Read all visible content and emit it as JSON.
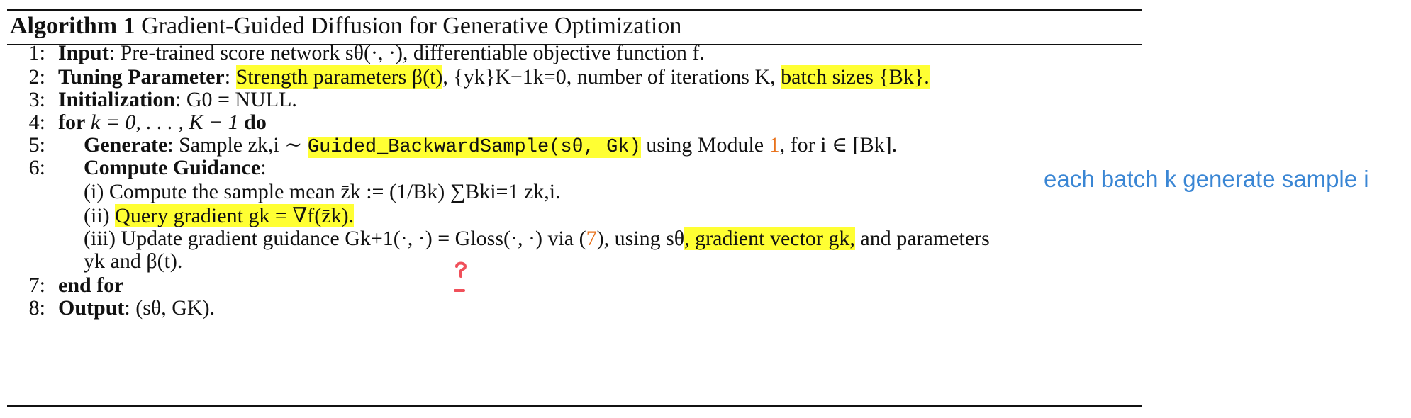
{
  "title": {
    "label": "Algorithm 1",
    "text": "Gradient-Guided Diffusion for Generative Optimization"
  },
  "lines": [
    {
      "num": "1:",
      "kw": "Input",
      "rest": ": Pre-trained score network sθ(·, ·), differentiable objective function f."
    },
    {
      "num": "2:",
      "kw": "Tuning Parameter",
      "hl1": "Strength parameters β(t)",
      "mid": ", {yk}K−1k=0, number of iterations K, ",
      "hl2": "batch sizes {Bk}."
    },
    {
      "num": "3:",
      "kw": "Initialization",
      "rest": ": G0 = NULL."
    },
    {
      "num": "4:",
      "kw1": "for",
      "mid": " k = 0, . . . , K − 1 ",
      "kw2": "do"
    },
    {
      "num": "5:",
      "kw": "Generate",
      "pre": ": Sample zk,i ∼ ",
      "hl": "Guided_BackwardSample(sθ, Gk)",
      "post1": " using Module ",
      "ref": "1",
      "post2": ", for i ∈ [Bk]."
    },
    {
      "num": "6:",
      "kw": "Compute Guidance",
      "rest": ":"
    },
    {
      "num": "",
      "text": "(i) Compute the sample mean z̄k := (1/Bk) ∑Bki=1 zk,i."
    },
    {
      "num": "",
      "pre": "(ii) ",
      "hl": "Query gradient gk = ∇f(z̄k)."
    },
    {
      "num": "",
      "pre": "(iii) Update gradient guidance Gk+1(·, ·) = Gloss(·, ·) via (",
      "ref": "7",
      "mid": "), using sθ",
      "hl": ", gradient vector gk,",
      "post": " and parameters"
    },
    {
      "num": "",
      "text": "yk and β(t)."
    },
    {
      "num": "7:",
      "kw": "end for"
    },
    {
      "num": "8:",
      "kw": "Output",
      "rest": ":  (sθ, GK)."
    }
  ],
  "annotation": "each batch k generate sample i",
  "colors": {
    "highlight": "#ffff33",
    "annotation": "#3a86d4",
    "reference": "#e8721c",
    "pen_mark": "#f0505a"
  }
}
